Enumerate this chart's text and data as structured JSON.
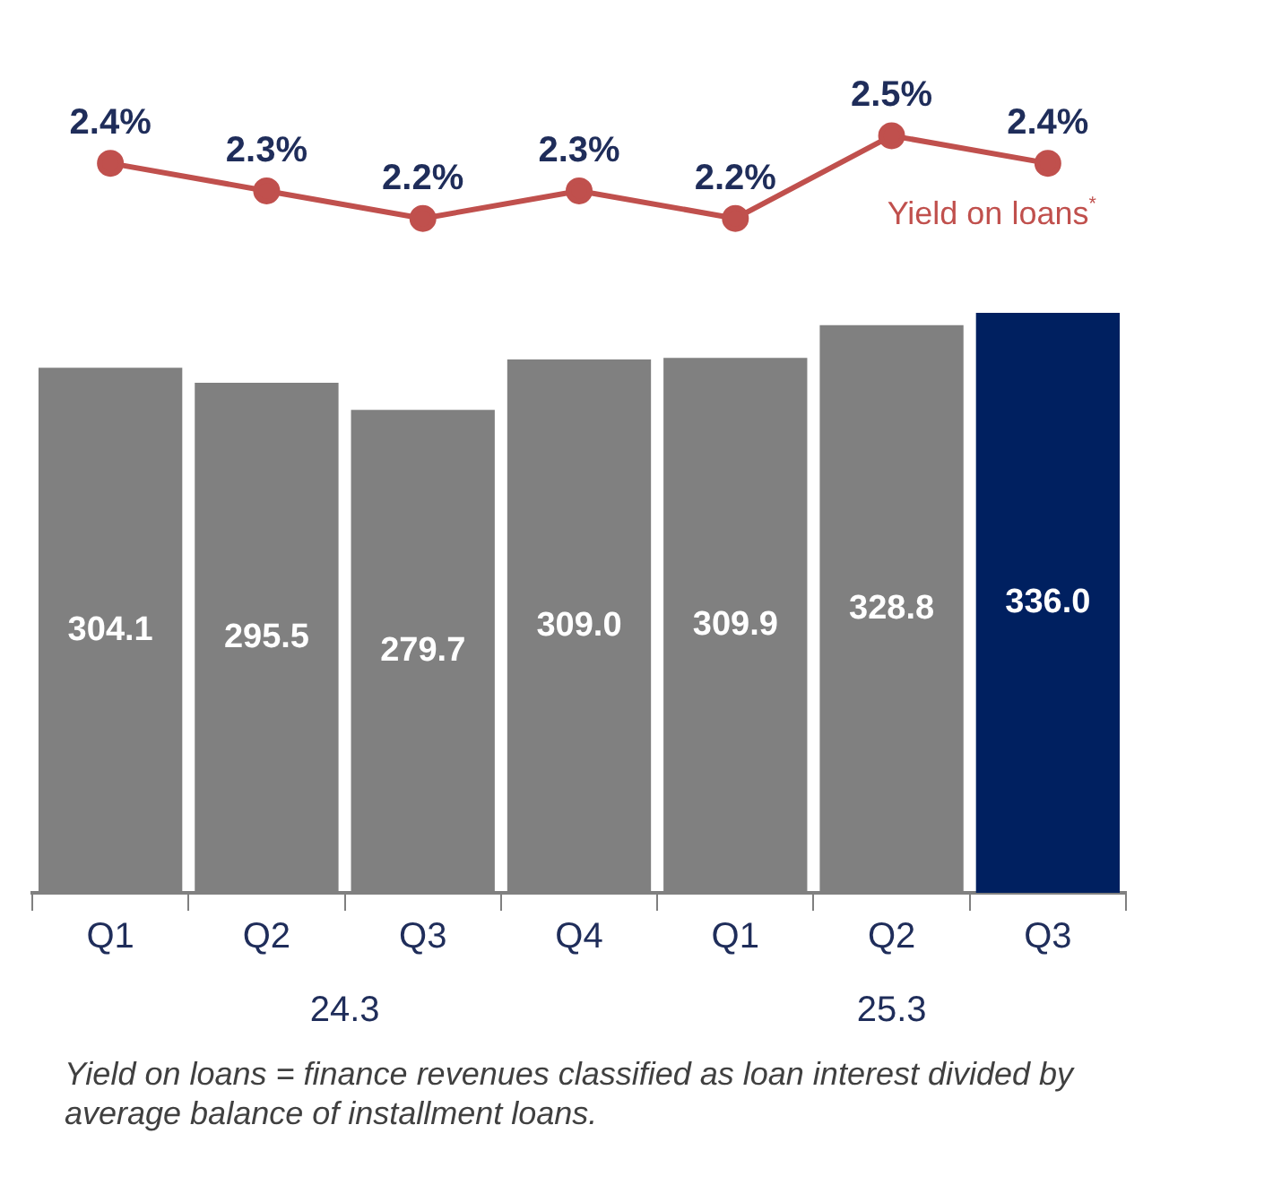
{
  "chart_data": [
    {
      "type": "line",
      "categories": [
        null,
        null,
        null,
        null,
        null,
        null,
        null
      ],
      "series": [
        {
          "name": "Yield on loans$^{*}$",
          "color": "#c0504d",
          "values": [
            2.4,
            2.3,
            2.2,
            2.3,
            2.2,
            2.5,
            2.4
          ],
          "value_labels": [
            "2.4%",
            "2.3%",
            "2.2%",
            "2.3%",
            "2.2%",
            "2.5%",
            "2.4%"
          ]
        }
      ],
      "marker": "circle",
      "line_style": "solid",
      "tick_labels": false
    },
    {
      "type": "bar",
      "categories": [
        "Q1",
        "Q2",
        "Q3",
        "Q4",
        "Q1",
        "Q2",
        "Q3"
      ],
      "series": [
        {
          "values": [
            304.1,
            295.5,
            279.7,
            309.0,
            309.9,
            328.8,
            336.0
          ],
          "colors": [
            "#808080",
            "#808080",
            "#808080",
            "#808080",
            "#808080",
            "#808080",
            "#002060"
          ],
          "value_labels": [
            "304.1",
            "295.5",
            "279.7",
            "309.0",
            "309.9",
            "328.8",
            "336.0"
          ]
        }
      ],
      "tick_labels": "x",
      "annotations": [
        "24.3",
        "25.3",
        "Yield on loans = finance revenues classified as loan interest divided by average balance of installment loans."
      ]
    }
  ]
}
